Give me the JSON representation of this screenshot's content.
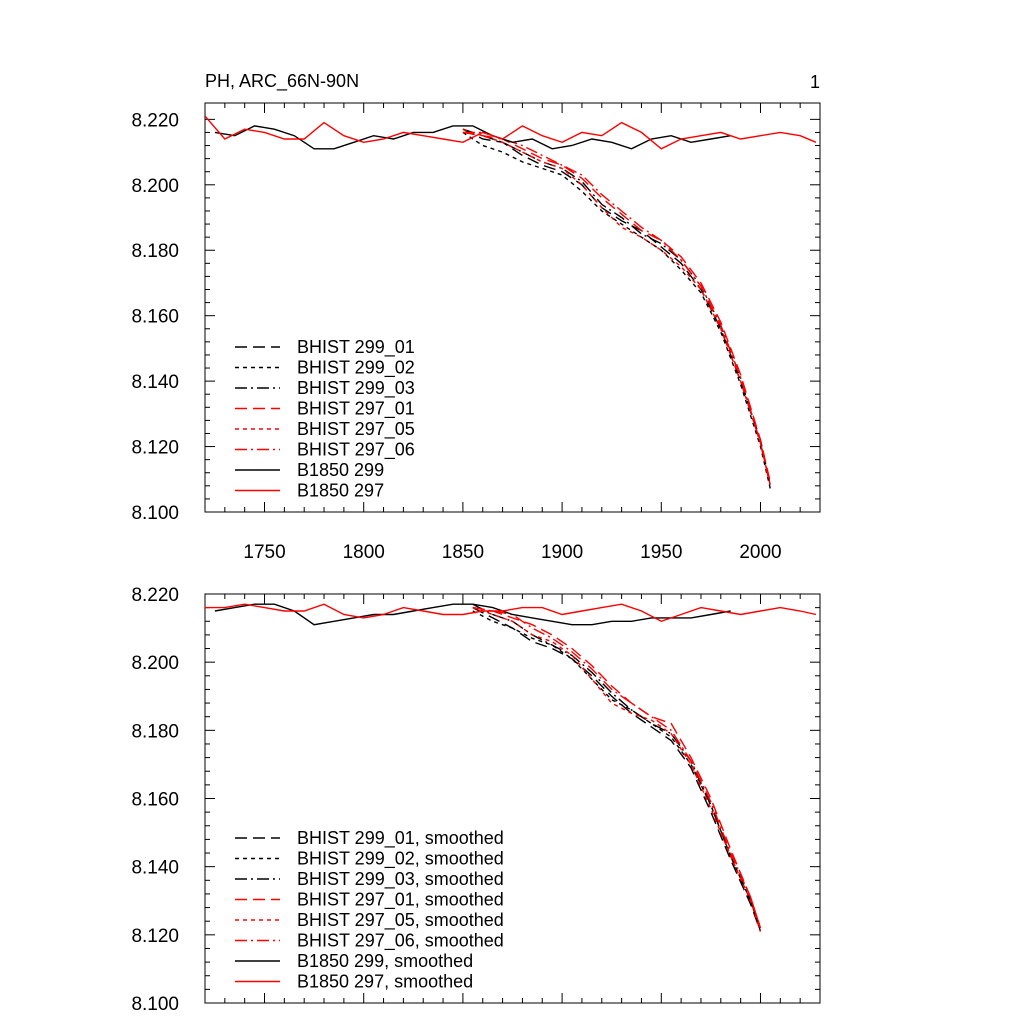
{
  "chart_data": [
    {
      "type": "line",
      "title": "PH, ARC_66N-90N",
      "panel_label": "1",
      "xlim": [
        1720,
        2030
      ],
      "ylim": [
        8.1,
        8.225
      ],
      "x_ticks": [
        "1750",
        "1800",
        "1850",
        "1900",
        "1950",
        "2000"
      ],
      "y_ticks": [
        "8.100",
        "8.120",
        "8.140",
        "8.160",
        "8.180",
        "8.200",
        "8.220"
      ],
      "legend_position": "bottom-left",
      "series": [
        {
          "name": "BHIST 299_01",
          "color": "#000000",
          "dash": "dash",
          "x": [
            1850,
            1860,
            1870,
            1880,
            1890,
            1900,
            1910,
            1920,
            1930,
            1940,
            1950,
            1960,
            1970,
            1980,
            1990,
            2000,
            2005
          ],
          "y": [
            8.217,
            8.214,
            8.213,
            8.209,
            8.206,
            8.204,
            8.2,
            8.193,
            8.189,
            8.186,
            8.181,
            8.176,
            8.168,
            8.156,
            8.14,
            8.122,
            8.108
          ]
        },
        {
          "name": "BHIST 299_02",
          "color": "#000000",
          "dash": "dot",
          "x": [
            1850,
            1860,
            1870,
            1880,
            1890,
            1900,
            1910,
            1920,
            1930,
            1940,
            1950,
            1960,
            1970,
            1980,
            1990,
            2000,
            2005
          ],
          "y": [
            8.216,
            8.212,
            8.21,
            8.207,
            8.205,
            8.203,
            8.198,
            8.192,
            8.188,
            8.184,
            8.18,
            8.174,
            8.167,
            8.155,
            8.139,
            8.12,
            8.107
          ]
        },
        {
          "name": "BHIST 299_03",
          "color": "#000000",
          "dash": "dashdot",
          "x": [
            1850,
            1860,
            1870,
            1880,
            1890,
            1900,
            1910,
            1920,
            1930,
            1940,
            1950,
            1960,
            1970,
            1980,
            1990,
            2000,
            2005
          ],
          "y": [
            8.217,
            8.215,
            8.213,
            8.21,
            8.207,
            8.205,
            8.201,
            8.194,
            8.19,
            8.185,
            8.182,
            8.177,
            8.169,
            8.157,
            8.141,
            8.121,
            8.108
          ]
        },
        {
          "name": "BHIST 297_01",
          "color": "#ff0000",
          "dash": "dash",
          "x": [
            1850,
            1860,
            1870,
            1880,
            1890,
            1900,
            1910,
            1920,
            1930,
            1940,
            1950,
            1960,
            1970,
            1980,
            1990,
            2000,
            2005
          ],
          "y": [
            8.216,
            8.215,
            8.214,
            8.211,
            8.208,
            8.206,
            8.202,
            8.196,
            8.191,
            8.186,
            8.183,
            8.178,
            8.17,
            8.158,
            8.142,
            8.122,
            8.109
          ]
        },
        {
          "name": "BHIST 297_05",
          "color": "#ff0000",
          "dash": "dot",
          "x": [
            1850,
            1860,
            1870,
            1880,
            1890,
            1900,
            1910,
            1920,
            1930,
            1940,
            1950,
            1960,
            1970,
            1980,
            1990,
            2000,
            2005
          ],
          "y": [
            8.217,
            8.215,
            8.213,
            8.21,
            8.207,
            8.205,
            8.2,
            8.193,
            8.187,
            8.184,
            8.18,
            8.175,
            8.168,
            8.156,
            8.14,
            8.121,
            8.108
          ]
        },
        {
          "name": "BHIST 297_06",
          "color": "#ff0000",
          "dash": "dashdot",
          "x": [
            1850,
            1860,
            1870,
            1880,
            1890,
            1900,
            1910,
            1920,
            1930,
            1940,
            1950,
            1960,
            1970,
            1980,
            1990,
            2000,
            2005
          ],
          "y": [
            8.216,
            8.216,
            8.214,
            8.212,
            8.209,
            8.206,
            8.203,
            8.197,
            8.192,
            8.187,
            8.183,
            8.177,
            8.169,
            8.157,
            8.141,
            8.121,
            8.108
          ]
        },
        {
          "name": "B1850 299",
          "color": "#000000",
          "dash": "solid",
          "x": [
            1725,
            1735,
            1745,
            1755,
            1765,
            1775,
            1785,
            1795,
            1805,
            1815,
            1825,
            1835,
            1845,
            1855,
            1865,
            1875,
            1885,
            1895,
            1905,
            1915,
            1925,
            1935,
            1945,
            1955,
            1965,
            1975,
            1985
          ],
          "y": [
            8.216,
            8.215,
            8.218,
            8.217,
            8.215,
            8.211,
            8.211,
            8.213,
            8.215,
            8.214,
            8.216,
            8.216,
            8.218,
            8.218,
            8.215,
            8.213,
            8.214,
            8.211,
            8.212,
            8.214,
            8.213,
            8.211,
            8.214,
            8.215,
            8.213,
            8.214,
            8.215
          ]
        },
        {
          "name": "B1850 297",
          "color": "#ff0000",
          "dash": "solid",
          "x": [
            1720,
            1730,
            1740,
            1750,
            1760,
            1770,
            1780,
            1790,
            1800,
            1810,
            1820,
            1830,
            1840,
            1850,
            1860,
            1870,
            1880,
            1890,
            1900,
            1910,
            1920,
            1930,
            1940,
            1950,
            1960,
            1970,
            1980,
            1990,
            2000,
            2010,
            2020,
            2028
          ],
          "y": [
            8.221,
            8.214,
            8.217,
            8.216,
            8.214,
            8.214,
            8.219,
            8.215,
            8.213,
            8.214,
            8.216,
            8.215,
            8.214,
            8.213,
            8.216,
            8.214,
            8.218,
            8.215,
            8.213,
            8.216,
            8.215,
            8.219,
            8.216,
            8.211,
            8.214,
            8.215,
            8.216,
            8.214,
            8.215,
            8.216,
            8.215,
            8.213
          ]
        }
      ]
    },
    {
      "type": "line",
      "xlim": [
        1720,
        2030
      ],
      "ylim": [
        8.1,
        8.22
      ],
      "y_ticks": [
        "8.100",
        "8.120",
        "8.140",
        "8.160",
        "8.180",
        "8.200",
        "8.220"
      ],
      "legend_position": "bottom-left",
      "series": [
        {
          "name": "BHIST 299_01, smoothed",
          "color": "#000000",
          "dash": "dash",
          "x": [
            1855,
            1865,
            1875,
            1885,
            1895,
            1905,
            1915,
            1925,
            1935,
            1945,
            1955,
            1965,
            1975,
            1985,
            1995,
            2000
          ],
          "y": [
            8.216,
            8.213,
            8.21,
            8.206,
            8.204,
            8.201,
            8.196,
            8.19,
            8.185,
            8.181,
            8.177,
            8.169,
            8.156,
            8.142,
            8.129,
            8.121
          ]
        },
        {
          "name": "BHIST 299_02, smoothed",
          "color": "#000000",
          "dash": "dot",
          "x": [
            1855,
            1865,
            1875,
            1885,
            1895,
            1905,
            1915,
            1925,
            1935,
            1945,
            1955,
            1965,
            1975,
            1985,
            1995,
            2000
          ],
          "y": [
            8.215,
            8.212,
            8.21,
            8.207,
            8.205,
            8.201,
            8.195,
            8.189,
            8.186,
            8.182,
            8.178,
            8.17,
            8.158,
            8.143,
            8.13,
            8.121
          ]
        },
        {
          "name": "BHIST 299_03, smoothed",
          "color": "#000000",
          "dash": "dashdot",
          "x": [
            1855,
            1865,
            1875,
            1885,
            1895,
            1905,
            1915,
            1925,
            1935,
            1945,
            1955,
            1965,
            1975,
            1985,
            1995,
            2000
          ],
          "y": [
            8.217,
            8.214,
            8.212,
            8.208,
            8.205,
            8.202,
            8.197,
            8.191,
            8.186,
            8.182,
            8.179,
            8.171,
            8.158,
            8.143,
            8.13,
            8.121
          ]
        },
        {
          "name": "BHIST 297_01, smoothed",
          "color": "#ff0000",
          "dash": "dash",
          "x": [
            1855,
            1865,
            1875,
            1885,
            1895,
            1905,
            1915,
            1925,
            1935,
            1945,
            1955,
            1965,
            1975,
            1985,
            1995,
            2000
          ],
          "y": [
            8.216,
            8.215,
            8.213,
            8.211,
            8.208,
            8.204,
            8.199,
            8.193,
            8.188,
            8.184,
            8.182,
            8.172,
            8.16,
            8.145,
            8.131,
            8.122
          ]
        },
        {
          "name": "BHIST 297_05, smoothed",
          "color": "#ff0000",
          "dash": "dot",
          "x": [
            1855,
            1865,
            1875,
            1885,
            1895,
            1905,
            1915,
            1925,
            1935,
            1945,
            1955,
            1965,
            1975,
            1985,
            1995,
            2000
          ],
          "y": [
            8.216,
            8.214,
            8.212,
            8.208,
            8.206,
            8.202,
            8.195,
            8.188,
            8.185,
            8.183,
            8.179,
            8.17,
            8.157,
            8.143,
            8.13,
            8.121
          ]
        },
        {
          "name": "BHIST 297_06, smoothed",
          "color": "#ff0000",
          "dash": "dashdot",
          "x": [
            1855,
            1865,
            1875,
            1885,
            1895,
            1905,
            1915,
            1925,
            1935,
            1945,
            1955,
            1965,
            1975,
            1985,
            1995,
            2000
          ],
          "y": [
            8.216,
            8.215,
            8.214,
            8.21,
            8.207,
            8.203,
            8.198,
            8.192,
            8.188,
            8.184,
            8.18,
            8.171,
            8.159,
            8.144,
            8.131,
            8.122
          ]
        },
        {
          "name": "B1850 299, smoothed",
          "color": "#000000",
          "dash": "solid",
          "x": [
            1725,
            1735,
            1745,
            1755,
            1765,
            1775,
            1785,
            1795,
            1805,
            1815,
            1825,
            1835,
            1845,
            1855,
            1865,
            1875,
            1885,
            1895,
            1905,
            1915,
            1925,
            1935,
            1945,
            1955,
            1965,
            1975,
            1985
          ],
          "y": [
            8.215,
            8.216,
            8.217,
            8.217,
            8.215,
            8.211,
            8.212,
            8.213,
            8.214,
            8.214,
            8.215,
            8.216,
            8.217,
            8.217,
            8.216,
            8.214,
            8.213,
            8.212,
            8.211,
            8.211,
            8.212,
            8.212,
            8.213,
            8.213,
            8.213,
            8.214,
            8.215
          ]
        },
        {
          "name": "B1850 297, smoothed",
          "color": "#ff0000",
          "dash": "solid",
          "x": [
            1720,
            1730,
            1740,
            1750,
            1760,
            1770,
            1780,
            1790,
            1800,
            1810,
            1820,
            1830,
            1840,
            1850,
            1860,
            1870,
            1880,
            1890,
            1900,
            1910,
            1920,
            1930,
            1940,
            1950,
            1960,
            1970,
            1980,
            1990,
            2000,
            2010,
            2020,
            2028
          ],
          "y": [
            8.216,
            8.216,
            8.217,
            8.216,
            8.215,
            8.215,
            8.217,
            8.214,
            8.213,
            8.214,
            8.216,
            8.215,
            8.214,
            8.214,
            8.215,
            8.215,
            8.216,
            8.216,
            8.214,
            8.215,
            8.216,
            8.217,
            8.215,
            8.212,
            8.214,
            8.216,
            8.215,
            8.214,
            8.215,
            8.216,
            8.215,
            8.214
          ]
        }
      ]
    }
  ]
}
